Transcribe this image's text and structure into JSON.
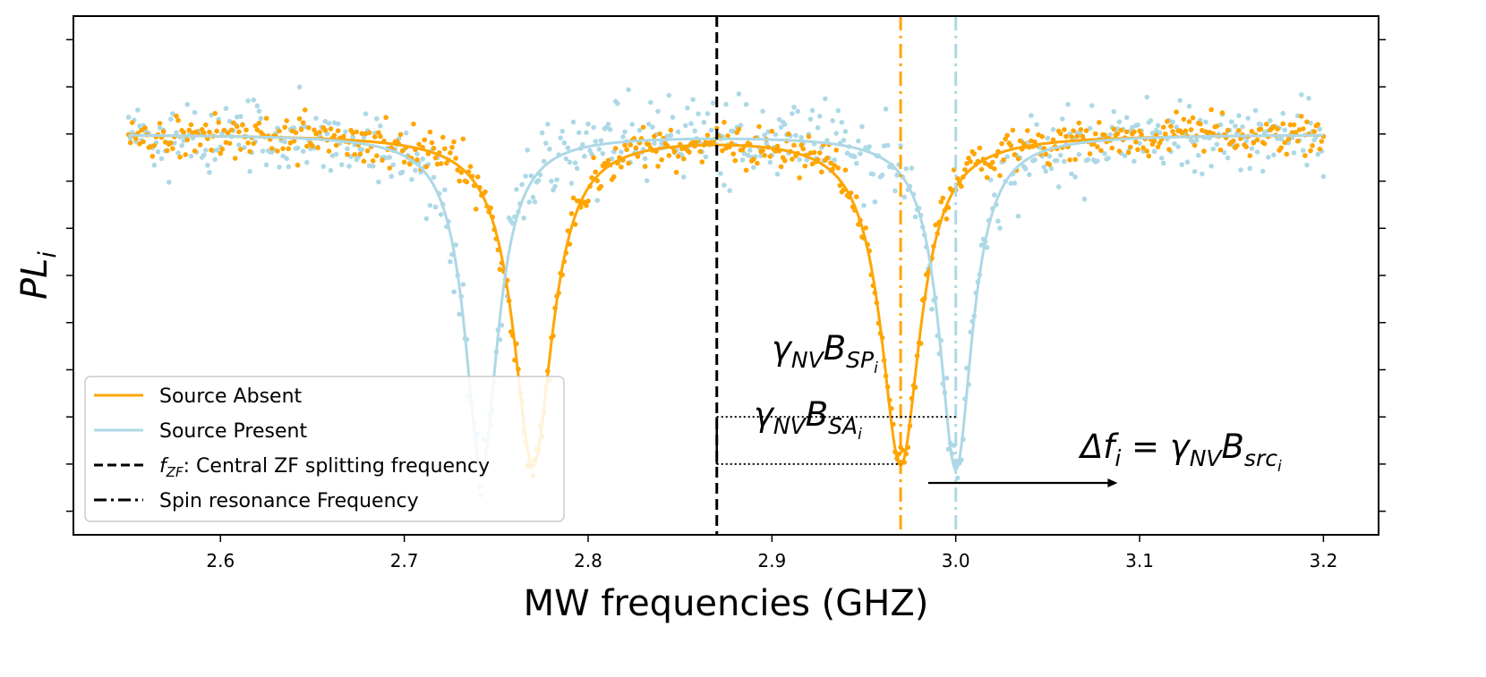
{
  "chart_data": {
    "type": "line",
    "title": "",
    "xlabel": "MW frequencies (GHZ)",
    "ylabel_main": "PL",
    "ylabel_sub": "i",
    "xlim": [
      2.52,
      3.23
    ],
    "ylim": [
      0.0,
      1.1
    ],
    "xticks": [
      2.6,
      2.7,
      2.8,
      2.9,
      3.0,
      3.1,
      3.2
    ],
    "xtick_labels": [
      "2.6",
      "2.7",
      "2.8",
      "2.9",
      "3.0",
      "3.1",
      "3.2"
    ],
    "yticks": [
      0.05,
      0.15,
      0.25,
      0.35,
      0.45,
      0.55,
      0.65,
      0.75,
      0.85,
      0.95,
      1.05
    ],
    "grid": false,
    "legend_position": "lower-left",
    "baseline": 0.85,
    "x_range": [
      2.55,
      3.2
    ],
    "series": [
      {
        "key": "absent",
        "name": "Source Absent",
        "color": "#FFA500",
        "dips": [
          {
            "center": 2.77,
            "depth": 0.7,
            "width": 0.013
          },
          {
            "center": 2.97,
            "depth": 0.7,
            "width": 0.013
          }
        ]
      },
      {
        "key": "present",
        "name": "Source Present",
        "color": "#ADD8E6",
        "dips": [
          {
            "center": 2.742,
            "depth": 0.71,
            "width": 0.011
          },
          {
            "center": 3.0,
            "depth": 0.71,
            "width": 0.011
          }
        ]
      }
    ],
    "vlines": [
      {
        "name": "f_ZF",
        "x": 2.87,
        "style": "dashed",
        "color": "#000000"
      },
      {
        "name": "spin-absent",
        "x": 2.97,
        "style": "dashdot",
        "color": "#FFA500"
      },
      {
        "name": "spin-present",
        "x": 3.0,
        "style": "dashdot",
        "color": "#ADD8E6"
      }
    ],
    "legend_entries": [
      {
        "label": "Source Absent",
        "style": "solid",
        "color": "#FFA500"
      },
      {
        "label": "Source Present",
        "style": "solid",
        "color": "#ADD8E6"
      },
      {
        "label_sym": "f",
        "label_sub": "ZF",
        "label_rest": ": Central ZF splitting frequency",
        "style": "dashed",
        "color": "#000000"
      },
      {
        "label": "Spin resonance Frequency",
        "style": "dashdot",
        "color": "#000000"
      }
    ],
    "annotations": {
      "sp": {
        "x_from": 2.87,
        "x_to": 3.0,
        "y": 0.25,
        "text_pre": "γ",
        "text_sub1": "NV",
        "text_mid": "B",
        "text_sub2": "SP",
        "text_sub3": "i"
      },
      "sa": {
        "x_from": 2.87,
        "x_to": 2.97,
        "y": 0.15,
        "text_pre": "γ",
        "text_sub1": "NV",
        "text_mid": "B",
        "text_sub2": "SA",
        "text_sub3": "i"
      },
      "shift": {
        "x_from": 2.985,
        "x_to": 3.088,
        "y": 0.11,
        "text_pre": "Δf",
        "text_sub0": "i",
        "text_eq": " = γ",
        "text_sub1": "NV",
        "text_mid": "B",
        "text_sub2": "src",
        "text_sub3": "i"
      }
    }
  }
}
